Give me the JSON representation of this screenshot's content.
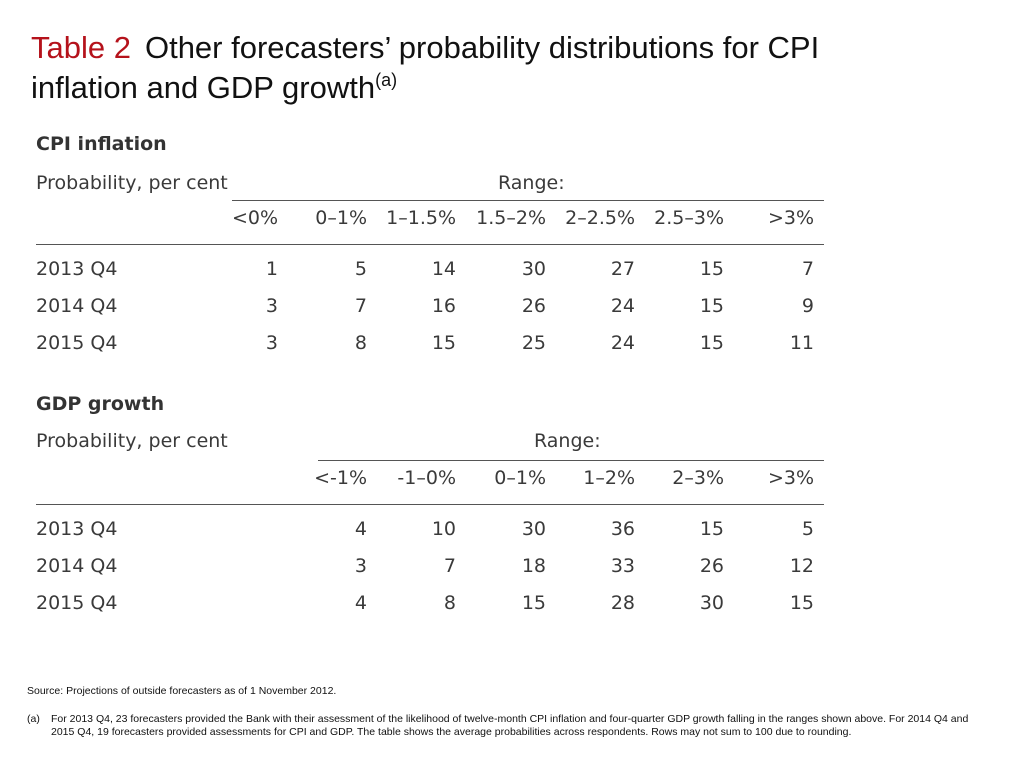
{
  "title": {
    "number": "Table 2",
    "text": "Other forecasters’ probability distributions for CPI inflation and GDP growth",
    "footnote_ref": "(a)"
  },
  "cpi": {
    "heading": "CPI inflation",
    "prob_label": "Probability, per cent",
    "range_label": "Range:",
    "columns": [
      "<0%",
      "0–1%",
      "1–1.5%",
      "1.5–2%",
      "2–2.5%",
      "2.5–3%",
      ">3%"
    ],
    "rows": [
      {
        "label": "2013 Q4",
        "values": [
          "1",
          "5",
          "14",
          "30",
          "27",
          "15",
          "7"
        ]
      },
      {
        "label": "2014 Q4",
        "values": [
          "3",
          "7",
          "16",
          "26",
          "24",
          "15",
          "9"
        ]
      },
      {
        "label": "2015 Q4",
        "values": [
          "3",
          "8",
          "15",
          "25",
          "24",
          "15",
          "11"
        ]
      }
    ]
  },
  "gdp": {
    "heading": "GDP growth",
    "prob_label": "Probability, per cent",
    "range_label": "Range:",
    "columns": [
      "<-1%",
      "-1–0%",
      "0–1%",
      "1–2%",
      "2–3%",
      ">3%"
    ],
    "rows": [
      {
        "label": "2013 Q4",
        "values": [
          "4",
          "10",
          "30",
          "36",
          "15",
          "5"
        ]
      },
      {
        "label": "2014 Q4",
        "values": [
          "3",
          "7",
          "18",
          "33",
          "26",
          "12"
        ]
      },
      {
        "label": "2015 Q4",
        "values": [
          "4",
          "8",
          "15",
          "28",
          "30",
          "15"
        ]
      }
    ]
  },
  "source": "Source:  Projections of outside forecasters as of 1 November 2012.",
  "note": {
    "mark": "(a)",
    "text": "For 2013 Q4, 23 forecasters provided the Bank with their assessment of the likelihood of twelve-month CPI inflation and four-quarter GDP growth falling in the ranges shown above. For 2014 Q4 and 2015 Q4, 19 forecasters provided assessments for CPI and GDP.  The table shows the average probabilities across respondents.  Rows may not sum to 100 due to rounding."
  }
}
